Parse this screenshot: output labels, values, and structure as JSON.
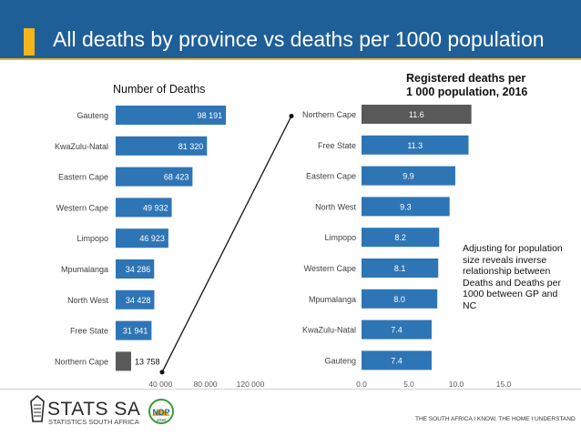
{
  "header": {
    "title": "All deaths by province vs deaths per 1000 population"
  },
  "note": "Adjusting for population size reveals inverse relationship between Deaths and Deaths per 1000 between GP and NC",
  "footer": {
    "logo_text": "STATS SA",
    "logo_subtext": "STATISTICS SOUTH AFRICA",
    "tagline": "THE SOUTH AFRICA I KNOW, THE HOME I UNDERSTAND",
    "ndp_label": "NDP",
    "ndp_year": "2030"
  },
  "colors": {
    "header_bg": "#1f5f98",
    "accent": "#f2b51c",
    "bar": "#2e75b6",
    "highlight_bar": "#595959"
  },
  "chart_data": [
    {
      "type": "bar",
      "orientation": "horizontal",
      "title": "Number of Deaths",
      "categories": [
        "Gauteng",
        "KwaZulu-Natal",
        "Eastern Cape",
        "Western Cape",
        "Limpopo",
        "Mpumalanga",
        "North West",
        "Free State",
        "Northern Cape"
      ],
      "values": [
        98191,
        81320,
        68423,
        49932,
        46923,
        34286,
        34428,
        31941,
        13758
      ],
      "value_labels": [
        "98 191",
        "81 320",
        "68 423",
        "49 932",
        "46 923",
        "34 286",
        "34 428",
        "31 941",
        "13 758"
      ],
      "highlight": "Northern Cape",
      "xlim": [
        0,
        120000
      ],
      "xticks": [
        40000,
        80000,
        120000
      ],
      "xtick_labels": [
        "40 000",
        "80 000",
        "120 000"
      ]
    },
    {
      "type": "bar",
      "orientation": "horizontal",
      "title": "Registered deaths per 1 000 population, 2016",
      "categories": [
        "Northern Cape",
        "Free State",
        "Eastern Cape",
        "North West",
        "Limpopo",
        "Western Cape",
        "Mpumalanga",
        "KwaZulu-Natal",
        "Gauteng"
      ],
      "values": [
        11.6,
        11.3,
        9.9,
        9.3,
        8.2,
        8.1,
        8.0,
        7.4,
        7.4
      ],
      "value_labels": [
        "11.6",
        "11.3",
        "9.9",
        "9.3",
        "8.2",
        "8.1",
        "8.0",
        "7.4",
        "7.4"
      ],
      "highlight": "Northern Cape",
      "xlim": [
        0,
        15
      ],
      "xticks": [
        0,
        5,
        10,
        15
      ],
      "xtick_labels": [
        "0.0",
        "5.0",
        "10.0",
        "15.0"
      ]
    }
  ]
}
